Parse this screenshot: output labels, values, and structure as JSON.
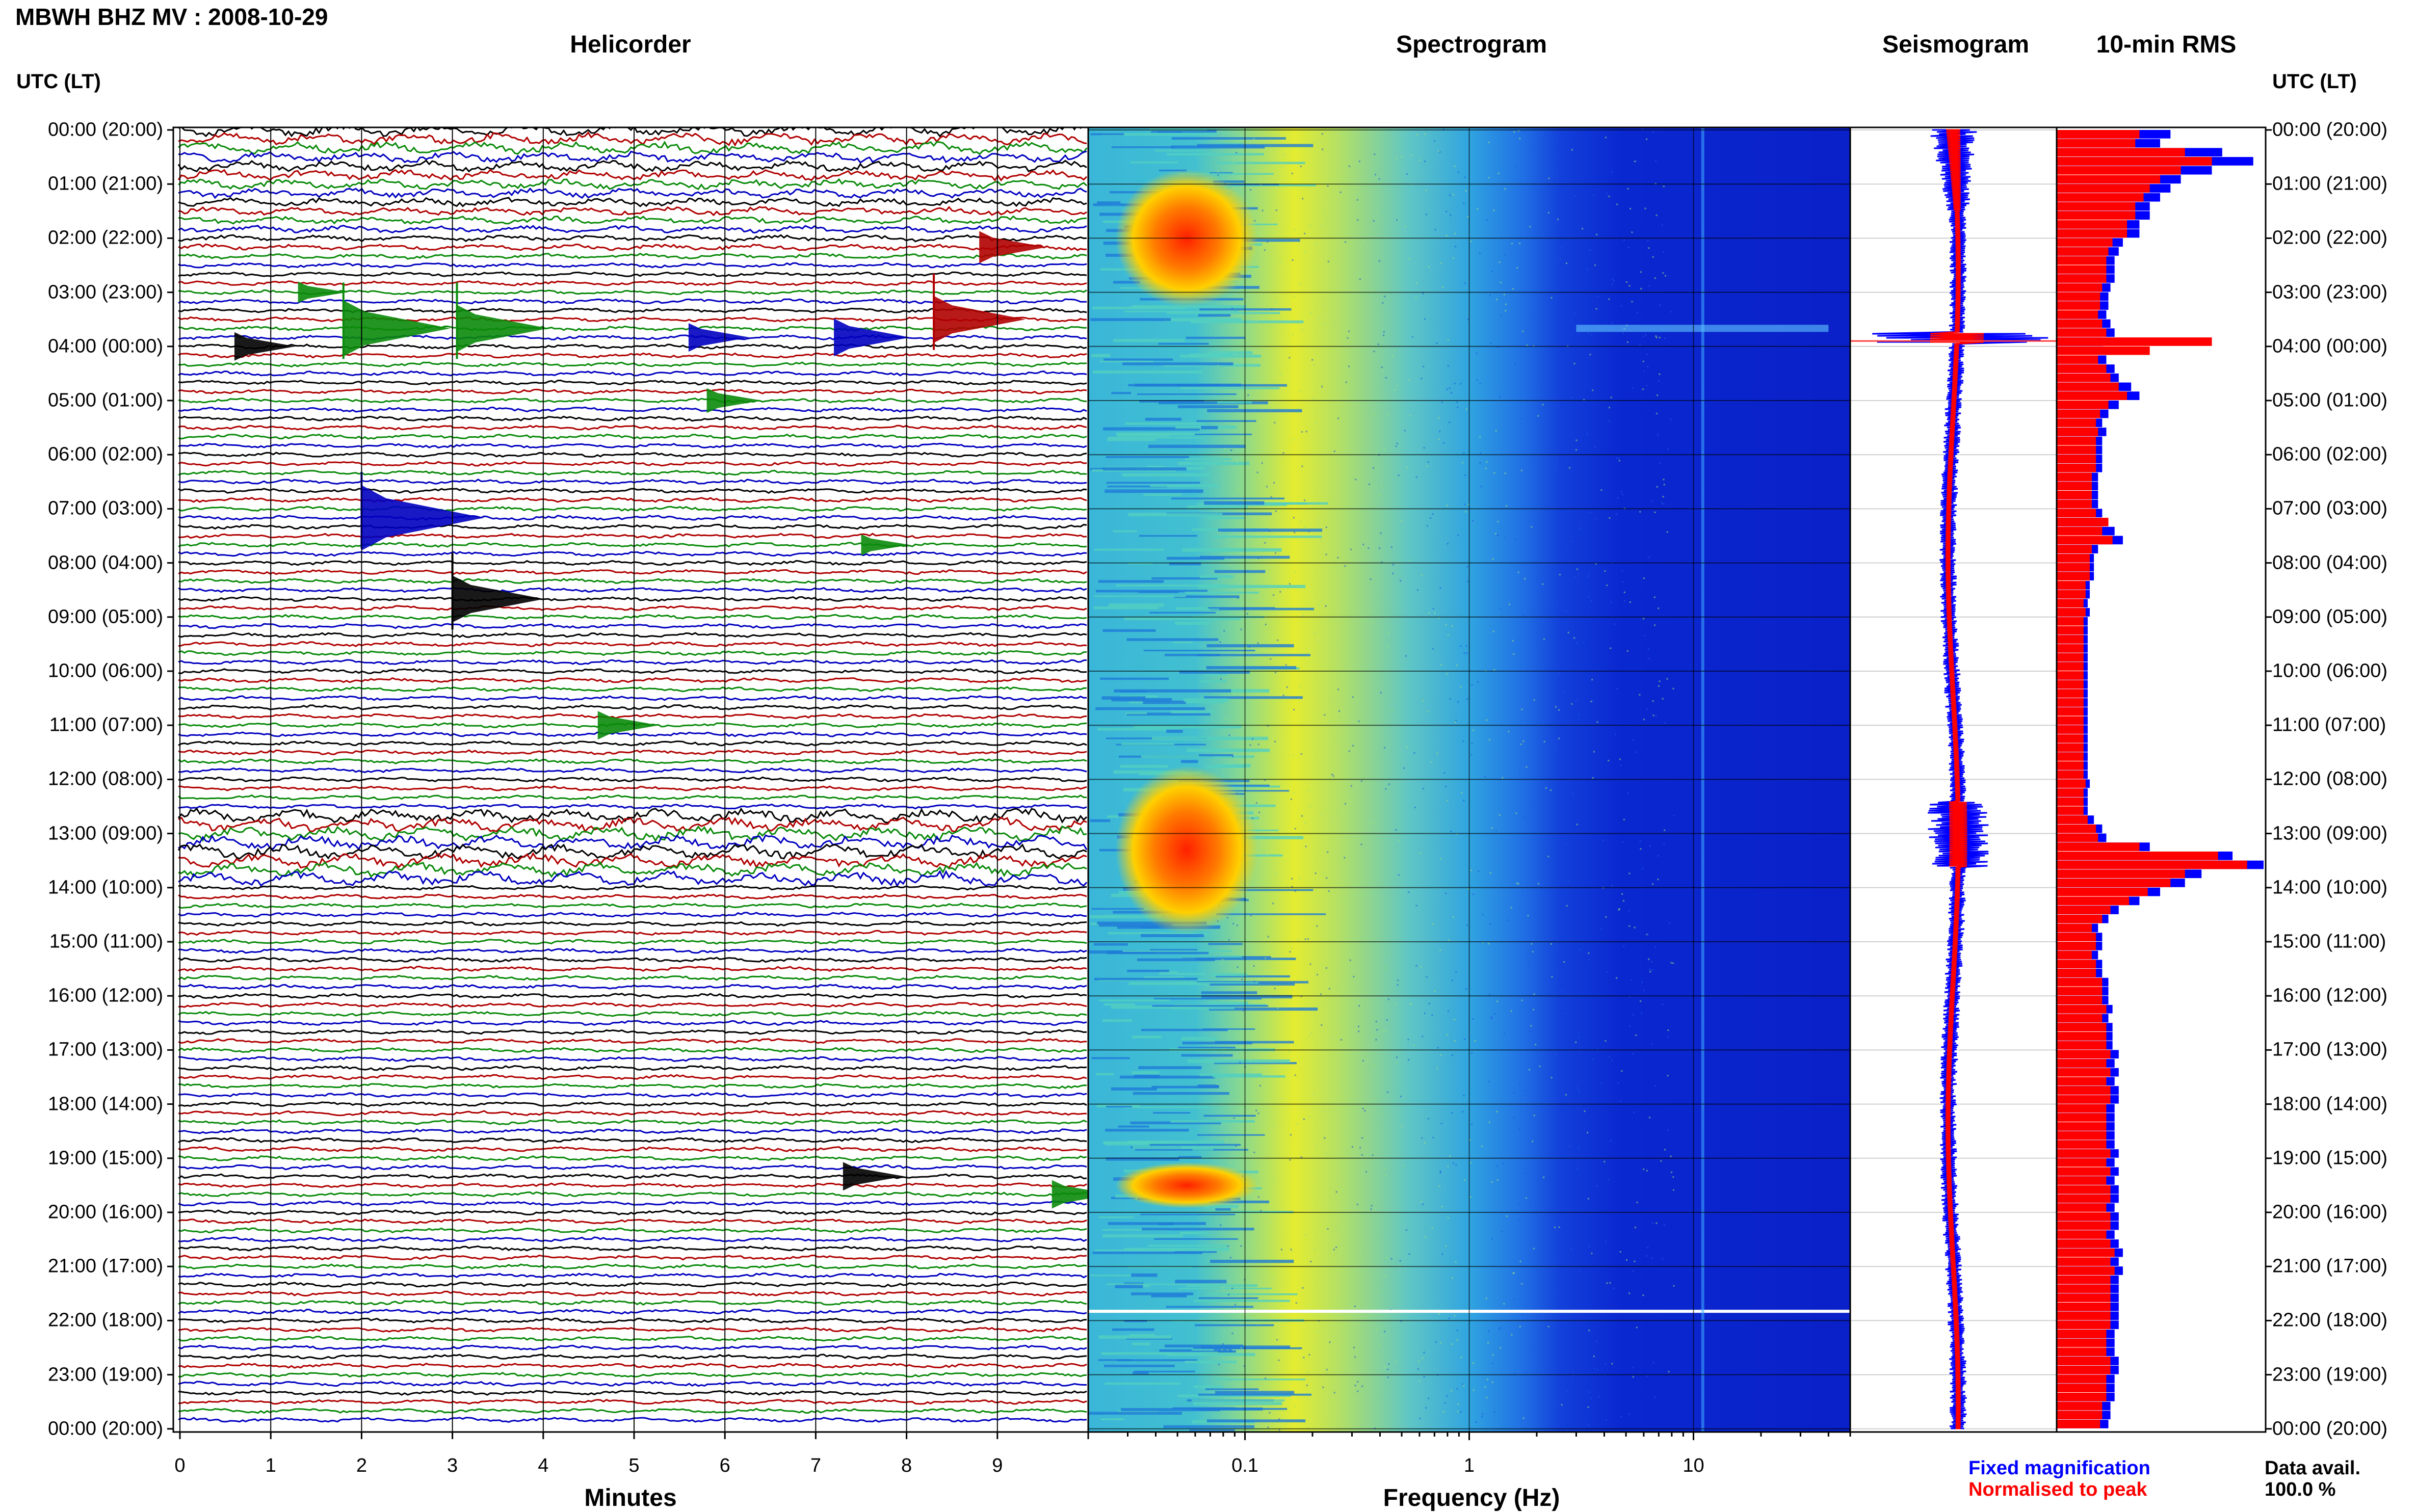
{
  "station": "MBWH BHZ MV : 2008-10-29",
  "panels": {
    "helicorder": "Helicorder",
    "spectrogram": "Spectrogram",
    "seismogram": "Seismogram",
    "rms": "10-min RMS"
  },
  "utc_header": "UTC (LT)",
  "x_titles": {
    "minutes": "Minutes",
    "frequency": "Frequency (Hz)"
  },
  "legend": {
    "fixed": "Fixed magnification",
    "normalised": "Normalised to peak",
    "data_avail_label": "Data avail.",
    "data_avail_value": "100.0 %"
  },
  "colors": {
    "trace_cycle": [
      "#000000",
      "#b00000",
      "#0a8a0a",
      "#0000c0"
    ],
    "fixed": "#0000ff",
    "normalised": "#ff0000"
  },
  "chart_data": {
    "type": "heatmap",
    "time_labels": [
      "00:00 (20:00)",
      "01:00 (21:00)",
      "02:00 (22:00)",
      "03:00 (23:00)",
      "04:00 (00:00)",
      "05:00 (01:00)",
      "06:00 (02:00)",
      "07:00 (03:00)",
      "08:00 (04:00)",
      "09:00 (05:00)",
      "10:00 (06:00)",
      "11:00 (07:00)",
      "12:00 (08:00)",
      "13:00 (09:00)",
      "14:00 (10:00)",
      "15:00 (11:00)",
      "16:00 (12:00)",
      "17:00 (13:00)",
      "18:00 (14:00)",
      "19:00 (15:00)",
      "20:00 (16:00)",
      "21:00 (17:00)",
      "22:00 (18:00)",
      "23:00 (19:00)",
      "00:00 (20:00)"
    ],
    "minutes_ticks": [
      "0",
      "1",
      "2",
      "3",
      "4",
      "5",
      "6",
      "7",
      "8",
      "9"
    ],
    "frequency_ticks": [
      "0.1",
      "1",
      "10"
    ],
    "frequency_range_hz": [
      0.02,
      50
    ],
    "helicorder_lines": 144,
    "events": [
      {
        "hour": 2.1,
        "minute": 8.8,
        "size": 1.2
      },
      {
        "hour": 3.0,
        "minute": 1.3,
        "size": 0.6
      },
      {
        "hour": 3.6,
        "minute": 1.8,
        "size": 2.5
      },
      {
        "hour": 3.7,
        "minute": 3.05,
        "size": 2.0
      },
      {
        "hour": 3.8,
        "minute": 7.2,
        "size": 1.5
      },
      {
        "hour": 3.5,
        "minute": 8.3,
        "size": 2.0
      },
      {
        "hour": 3.8,
        "minute": 5.6,
        "size": 1.0
      },
      {
        "hour": 4.0,
        "minute": 0.6,
        "size": 1.0
      },
      {
        "hour": 5.0,
        "minute": 5.8,
        "size": 0.8
      },
      {
        "hour": 7.2,
        "minute": 2.0,
        "size": 3.0
      },
      {
        "hour": 7.7,
        "minute": 7.5,
        "size": 0.6
      },
      {
        "hour": 8.7,
        "minute": 3.0,
        "size": 2.0
      },
      {
        "hour": 11.0,
        "minute": 4.6,
        "size": 1.0
      },
      {
        "hour": 19.3,
        "minute": 7.3,
        "size": 1.0
      },
      {
        "hour": 19.7,
        "minute": 9.6,
        "size": 1.0
      }
    ],
    "rms_fixed": [
      0.55,
      0.5,
      0.8,
      0.95,
      0.75,
      0.6,
      0.55,
      0.5,
      0.45,
      0.45,
      0.4,
      0.4,
      0.32,
      0.3,
      0.28,
      0.28,
      0.28,
      0.26,
      0.25,
      0.25,
      0.24,
      0.26,
      0.28,
      0.22,
      0.23,
      0.24,
      0.28,
      0.3,
      0.36,
      0.4,
      0.3,
      0.25,
      0.22,
      0.24,
      0.22,
      0.22,
      0.22,
      0.22,
      0.2,
      0.2,
      0.2,
      0.2,
      0.22,
      0.22,
      0.28,
      0.32,
      0.2,
      0.18,
      0.18,
      0.18,
      0.16,
      0.16,
      0.15,
      0.16,
      0.15,
      0.15,
      0.15,
      0.15,
      0.15,
      0.15,
      0.15,
      0.15,
      0.15,
      0.15,
      0.15,
      0.15,
      0.15,
      0.15,
      0.15,
      0.15,
      0.15,
      0.15,
      0.16,
      0.15,
      0.15,
      0.15,
      0.18,
      0.22,
      0.24,
      0.45,
      0.85,
      1.0,
      0.7,
      0.62,
      0.5,
      0.4,
      0.3,
      0.25,
      0.2,
      0.22,
      0.22,
      0.2,
      0.22,
      0.22,
      0.25,
      0.25,
      0.25,
      0.27,
      0.25,
      0.27,
      0.27,
      0.27,
      0.3,
      0.28,
      0.3,
      0.28,
      0.3,
      0.3,
      0.28,
      0.28,
      0.28,
      0.28,
      0.28,
      0.3,
      0.28,
      0.3,
      0.28,
      0.3,
      0.3,
      0.28,
      0.3,
      0.3,
      0.28,
      0.3,
      0.32,
      0.3,
      0.32,
      0.3,
      0.3,
      0.3,
      0.3,
      0.3,
      0.3,
      0.28,
      0.28,
      0.28,
      0.3,
      0.3,
      0.28,
      0.28,
      0.28,
      0.26,
      0.26,
      0.25
    ],
    "rms_normalised": [
      0.4,
      0.38,
      0.62,
      0.75,
      0.6,
      0.5,
      0.45,
      0.42,
      0.38,
      0.38,
      0.34,
      0.34,
      0.27,
      0.25,
      0.24,
      0.24,
      0.24,
      0.22,
      0.21,
      0.21,
      0.2,
      0.22,
      0.24,
      0.75,
      0.45,
      0.2,
      0.24,
      0.26,
      0.3,
      0.34,
      0.25,
      0.21,
      0.19,
      0.2,
      0.19,
      0.19,
      0.19,
      0.19,
      0.17,
      0.17,
      0.17,
      0.17,
      0.19,
      0.25,
      0.22,
      0.27,
      0.17,
      0.16,
      0.16,
      0.16,
      0.14,
      0.14,
      0.13,
      0.14,
      0.13,
      0.13,
      0.13,
      0.13,
      0.13,
      0.13,
      0.13,
      0.13,
      0.13,
      0.13,
      0.13,
      0.13,
      0.13,
      0.13,
      0.13,
      0.13,
      0.13,
      0.13,
      0.14,
      0.13,
      0.13,
      0.13,
      0.15,
      0.19,
      0.2,
      0.4,
      0.78,
      0.92,
      0.62,
      0.55,
      0.44,
      0.35,
      0.26,
      0.22,
      0.17,
      0.19,
      0.19,
      0.17,
      0.19,
      0.19,
      0.22,
      0.22,
      0.22,
      0.24,
      0.22,
      0.24,
      0.24,
      0.24,
      0.26,
      0.24,
      0.26,
      0.24,
      0.26,
      0.26,
      0.24,
      0.24,
      0.24,
      0.24,
      0.24,
      0.26,
      0.24,
      0.26,
      0.24,
      0.26,
      0.26,
      0.24,
      0.26,
      0.26,
      0.24,
      0.26,
      0.28,
      0.26,
      0.28,
      0.26,
      0.26,
      0.26,
      0.26,
      0.26,
      0.26,
      0.24,
      0.24,
      0.24,
      0.26,
      0.26,
      0.24,
      0.24,
      0.24,
      0.22,
      0.22,
      0.21
    ]
  }
}
